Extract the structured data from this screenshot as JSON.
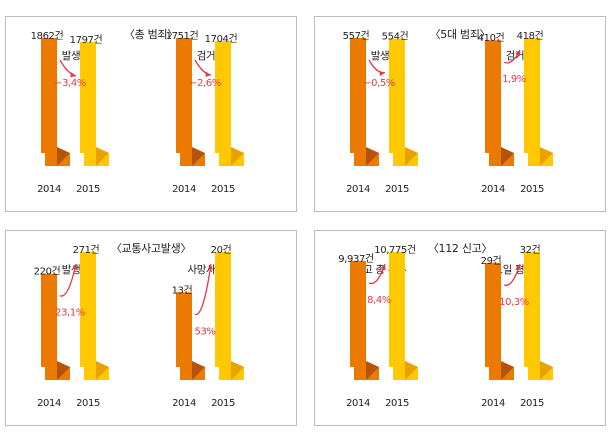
{
  "colors": {
    "bar_2014": "#ec7a00",
    "bar_2014_fold": "#b5530a",
    "bar_2015": "#ffc800",
    "bar_2015_fold": "#e9a100",
    "arrow": "#e63946",
    "border": "#bdbdbd"
  },
  "chart_data": [
    {
      "type": "bar",
      "title": "〈총 범죄〉",
      "groups": [
        {
          "subtitle": "발생",
          "categories": [
            "2014",
            "2015"
          ],
          "values": [
            1862,
            1797
          ],
          "value_labels": [
            "1862건",
            "1797건"
          ],
          "change_label": "−3,4%",
          "change_direction": "down"
        },
        {
          "subtitle": "검거",
          "categories": [
            "2014",
            "2015"
          ],
          "values": [
            1751,
            1704
          ],
          "value_labels": [
            "1751건",
            "1704건"
          ],
          "change_label": "−2,6%",
          "change_direction": "down"
        }
      ]
    },
    {
      "type": "bar",
      "title": "〈5대 범죄〉",
      "groups": [
        {
          "subtitle": "발생",
          "categories": [
            "2014",
            "2015"
          ],
          "values": [
            557,
            554
          ],
          "value_labels": [
            "557건",
            "554건"
          ],
          "change_label": "−0,5%",
          "change_direction": "down"
        },
        {
          "subtitle": "검거",
          "categories": [
            "2014",
            "2015"
          ],
          "values": [
            410,
            418
          ],
          "value_labels": [
            "410건",
            "418건"
          ],
          "change_label": "1,9%",
          "change_direction": "up"
        }
      ]
    },
    {
      "type": "bar",
      "title": "〈교통사고발생〉",
      "groups": [
        {
          "subtitle": "발생",
          "categories": [
            "2014",
            "2015"
          ],
          "values": [
            220,
            271
          ],
          "value_labels": [
            "220건",
            "271건"
          ],
          "change_label": "23,1%",
          "change_direction": "up"
        },
        {
          "subtitle": "사망사고",
          "categories": [
            "2014",
            "2015"
          ],
          "values": [
            13,
            20
          ],
          "value_labels": [
            "13건",
            "20건"
          ],
          "change_label": "53%",
          "change_direction": "up"
        }
      ]
    },
    {
      "type": "bar",
      "title": "〈112 신고〉",
      "groups": [
        {
          "subtitle": "신고 총 건수",
          "categories": [
            "2014",
            "2015"
          ],
          "values": [
            9937,
            10775
          ],
          "value_labels": [
            "9,937건",
            "10,775건"
          ],
          "change_label": "8,4%",
          "change_direction": "up"
        },
        {
          "subtitle": "1일 평균",
          "categories": [
            "2014",
            "2015"
          ],
          "values": [
            29,
            32
          ],
          "value_labels": [
            "29건",
            "32건"
          ],
          "change_label": "10,3%",
          "change_direction": "up"
        }
      ]
    }
  ]
}
